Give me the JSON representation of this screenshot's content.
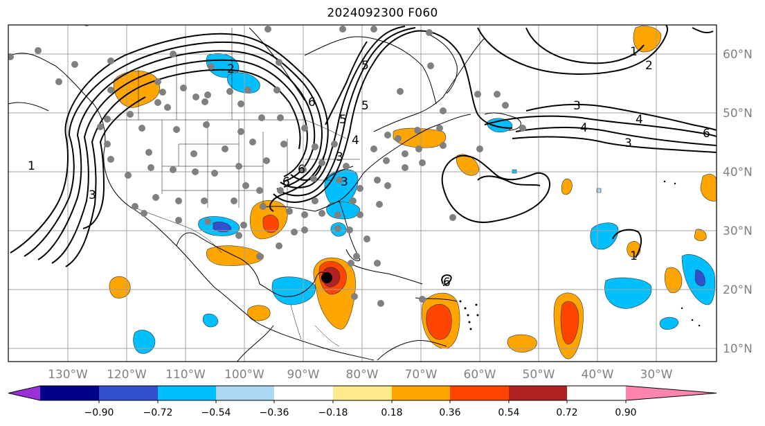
{
  "title": "2024092300 F060",
  "lon_labels": [
    "130°W",
    "120°W",
    "110°W",
    "100°W",
    "90°W",
    "80°W",
    "70°W",
    "60°W",
    "50°W",
    "40°W",
    "30°W"
  ],
  "lat_labels": [
    "60°N",
    "50°N",
    "40°N",
    "30°N",
    "20°N",
    "10°N"
  ],
  "colorbar": {
    "ticks": [
      "−0.90",
      "−0.72",
      "−0.54",
      "−0.36",
      "−0.18",
      "0.18",
      "0.36",
      "0.54",
      "0.72",
      "0.90"
    ],
    "colors": [
      "#9b30d9",
      "#00008b",
      "#3050d0",
      "#00bfff",
      "#add8f5",
      "#ffffff",
      "#ffe98a",
      "#ffa500",
      "#ff4500",
      "#b22222",
      "#ff85b0"
    ]
  },
  "contour_labels": [
    "1",
    "2",
    "3",
    "4",
    "5",
    "6",
    "3",
    "6",
    "1",
    "2",
    "3",
    "4",
    "5",
    "3",
    "6",
    "1",
    "6",
    "6",
    "5",
    "4",
    "3"
  ],
  "colors": {
    "positive_mid": "#ffa500",
    "positive_high": "#ff4500",
    "positive_max": "#b22222",
    "negative_mid": "#00bfff",
    "negative_high": "#3050d0",
    "grid": "#a0a0a0",
    "station": "#808080"
  }
}
